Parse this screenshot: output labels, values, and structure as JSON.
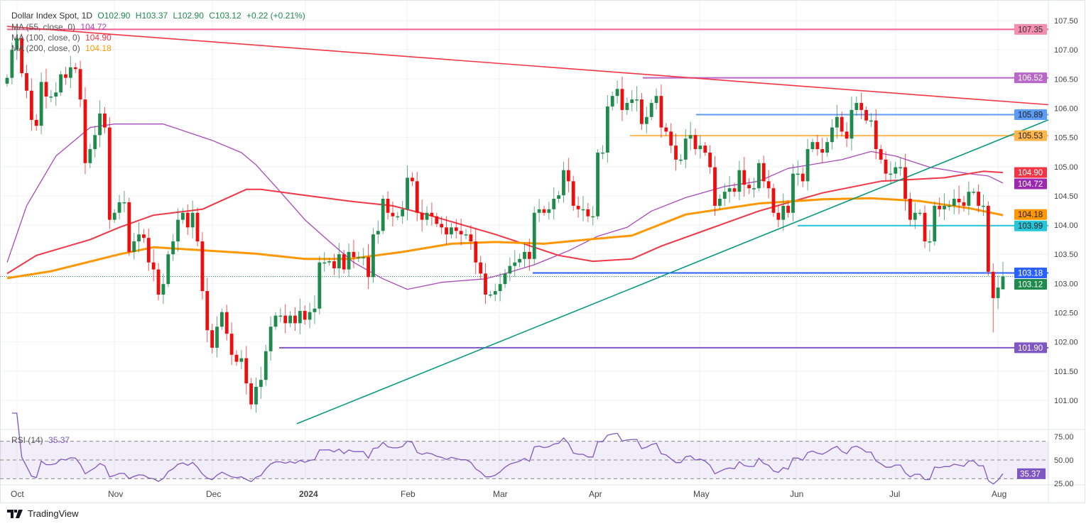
{
  "header": {
    "symbol": "Dollar Index Spot, 1D",
    "open": "O102.90",
    "high": "H103.37",
    "low": "L102.90",
    "close": "C103.12",
    "change": "+0.22 (+0.21%)"
  },
  "indicators": {
    "ma55": {
      "label": "MA (55, close, 0)",
      "value": "104.72",
      "color": "#ab47bc"
    },
    "ma100": {
      "label": "MA (100, close, 0)",
      "value": "104.90",
      "color": "#f23645"
    },
    "ma200": {
      "label": "MA (200, close, 0)",
      "value": "104.18",
      "color": "#ff9800"
    },
    "rsi": {
      "label": "RSI (14)",
      "value": "35.37",
      "color": "#7e57c2"
    }
  },
  "branding": {
    "name": "TradingView"
  },
  "chart_data": {
    "type": "candlestick",
    "title": "Dollar Index Spot, 1D",
    "ylim": [
      100.6,
      107.7
    ],
    "y_ticks": [
      "107.50",
      "107.00",
      "106.50",
      "106.00",
      "105.50",
      "105.00",
      "104.50",
      "104.00",
      "103.50",
      "103.00",
      "102.50",
      "102.00",
      "101.50",
      "101.00"
    ],
    "x_ticks": [
      "Oct",
      "Nov",
      "Dec",
      "2024",
      "Feb",
      "Mar",
      "Apr",
      "May",
      "Jun",
      "Jul",
      "Aug"
    ],
    "grid": true,
    "last_bar": {
      "open": 102.9,
      "high": 103.37,
      "low": 102.9,
      "close": 103.12
    },
    "closes": [
      106.52,
      107.0,
      107.2,
      106.6,
      106.3,
      105.8,
      105.7,
      106.45,
      106.2,
      106.2,
      106.27,
      106.58,
      106.52,
      106.7,
      106.67,
      106.15,
      105.06,
      105.3,
      105.54,
      105.91,
      105.67,
      104.09,
      104.21,
      104.39,
      104.39,
      103.54,
      103.72,
      103.84,
      103.78,
      103.36,
      103.24,
      102.81,
      102.99,
      103.5,
      103.72,
      104.09,
      104.21,
      103.96,
      104.21,
      103.72,
      102.87,
      102.2,
      101.9,
      102.26,
      102.51,
      102.14,
      101.78,
      101.66,
      101.72,
      101.29,
      100.93,
      101.23,
      101.35,
      101.84,
      102.26,
      102.45,
      102.45,
      102.32,
      102.45,
      102.32,
      102.53,
      102.38,
      102.51,
      102.57,
      103.36,
      103.36,
      103.38,
      103.26,
      103.5,
      103.24,
      103.54,
      103.45,
      103.45,
      103.45,
      103.11,
      103.84,
      103.9,
      104.45,
      104.21,
      104.15,
      104.15,
      104.27,
      104.81,
      104.75,
      104.21,
      104.09,
      104.21,
      104.15,
      104.02,
      103.96,
      103.84,
      103.96,
      103.9,
      103.84,
      103.84,
      103.72,
      103.36,
      103.17,
      102.81,
      102.81,
      102.87,
      102.99,
      103.17,
      103.3,
      103.36,
      103.42,
      103.54,
      103.42,
      104.21,
      104.27,
      104.21,
      104.27,
      104.45,
      104.51,
      104.94,
      104.75,
      104.33,
      104.27,
      104.27,
      104.15,
      104.15,
      105.24,
      105.24,
      106.03,
      106.21,
      106.33,
      105.97,
      106.09,
      106.15,
      106.15,
      105.73,
      105.85,
      106.09,
      106.21,
      105.67,
      105.6,
      105.36,
      105.12,
      105.12,
      105.48,
      105.54,
      105.3,
      105.36,
      105.24,
      104.99,
      104.33,
      104.45,
      104.57,
      104.63,
      104.57,
      104.94,
      104.69,
      104.63,
      104.63,
      105.06,
      104.75,
      104.63,
      104.21,
      104.09,
      104.33,
      104.21,
      104.88,
      104.88,
      104.75,
      105.3,
      105.42,
      105.3,
      105.24,
      105.42,
      105.67,
      105.85,
      105.6,
      105.48,
      105.97,
      106.09,
      105.97,
      105.79,
      105.79,
      105.3,
      105.12,
      104.88,
      104.88,
      104.99,
      104.99,
      104.45,
      104.09,
      104.21,
      104.21,
      103.72,
      103.72,
      104.33,
      104.27,
      104.33,
      104.33,
      104.45,
      104.39,
      104.33,
      104.57,
      104.57,
      104.33,
      104.33,
      103.2,
      102.75,
      102.93,
      103.12
    ],
    "moving_averages": [
      {
        "name": "MA (55, close, 0)",
        "color": "#ab47bc",
        "points": [
          [
            0,
            103.36
          ],
          [
            4,
            104.33
          ],
          [
            10,
            105.18
          ],
          [
            17,
            105.67
          ],
          [
            22,
            105.73
          ],
          [
            32,
            105.73
          ],
          [
            42,
            105.45
          ],
          [
            48,
            105.24
          ],
          [
            51,
            105.03
          ],
          [
            55,
            104.66
          ],
          [
            61,
            104.09
          ],
          [
            66,
            103.72
          ],
          [
            71,
            103.36
          ],
          [
            77,
            103.08
          ],
          [
            82,
            102.9
          ],
          [
            89,
            103.02
          ],
          [
            98,
            103.08
          ],
          [
            102,
            103.17
          ],
          [
            108,
            103.32
          ],
          [
            115,
            103.56
          ],
          [
            121,
            103.81
          ],
          [
            127,
            103.96
          ],
          [
            132,
            104.24
          ],
          [
            139,
            104.47
          ],
          [
            147,
            104.66
          ],
          [
            154,
            104.75
          ],
          [
            160,
            104.97
          ],
          [
            171,
            105.12
          ],
          [
            177,
            105.26
          ],
          [
            182,
            105.18
          ],
          [
            189,
            104.99
          ],
          [
            197,
            104.88
          ],
          [
            201,
            104.84
          ],
          [
            204,
            104.72
          ]
        ]
      },
      {
        "name": "MA (100, close, 0)",
        "color": "#f23645",
        "points": [
          [
            0,
            103.17
          ],
          [
            6,
            103.48
          ],
          [
            17,
            103.75
          ],
          [
            23,
            103.96
          ],
          [
            30,
            104.17
          ],
          [
            40,
            104.27
          ],
          [
            49,
            104.61
          ],
          [
            52,
            104.61
          ],
          [
            61,
            104.51
          ],
          [
            70,
            104.41
          ],
          [
            79,
            104.33
          ],
          [
            86,
            104.18
          ],
          [
            100,
            103.84
          ],
          [
            113,
            103.48
          ],
          [
            120,
            103.38
          ],
          [
            128,
            103.42
          ],
          [
            134,
            103.64
          ],
          [
            144,
            103.94
          ],
          [
            154,
            104.24
          ],
          [
            167,
            104.55
          ],
          [
            179,
            104.75
          ],
          [
            192,
            104.81
          ],
          [
            200,
            104.92
          ],
          [
            204,
            104.9
          ]
        ]
      },
      {
        "name": "MA (200, close, 0)",
        "color": "#ff9800",
        "points": [
          [
            0,
            103.09
          ],
          [
            9,
            103.21
          ],
          [
            23,
            103.5
          ],
          [
            30,
            103.62
          ],
          [
            51,
            103.51
          ],
          [
            61,
            103.42
          ],
          [
            70,
            103.42
          ],
          [
            81,
            103.54
          ],
          [
            91,
            103.68
          ],
          [
            100,
            103.71
          ],
          [
            110,
            103.68
          ],
          [
            120,
            103.76
          ],
          [
            128,
            103.82
          ],
          [
            139,
            104.18
          ],
          [
            154,
            104.37
          ],
          [
            167,
            104.44
          ],
          [
            177,
            104.46
          ],
          [
            187,
            104.41
          ],
          [
            197,
            104.29
          ],
          [
            204,
            104.17
          ]
        ]
      }
    ],
    "horizontal_levels": [
      {
        "value": "107.35",
        "color": "#f06292"
      },
      {
        "value": "106.52",
        "color": "#ba68c8"
      },
      {
        "value": "105.89",
        "color": "#5b9cf6"
      },
      {
        "value": "105.53",
        "color": "#ffb74d"
      },
      {
        "value": "103.99",
        "color": "#26c6da"
      },
      {
        "value": "103.18",
        "color": "#2962ff"
      },
      {
        "value": "101.90",
        "color": "#7e57c2"
      }
    ],
    "price_labels": [
      {
        "value": "107.35",
        "bg": "#f48fb1",
        "fg": "#333"
      },
      {
        "value": "106.52",
        "bg": "#ba68c8",
        "fg": "#fff"
      },
      {
        "value": "105.89",
        "bg": "#5b9cf6",
        "fg": "#222"
      },
      {
        "value": "105.53",
        "bg": "#ffb74d",
        "fg": "#222"
      },
      {
        "value": "104.90",
        "bg": "#f23645",
        "fg": "#fff"
      },
      {
        "value": "104.72",
        "bg": "#9c27b0",
        "fg": "#fff"
      },
      {
        "value": "104.18",
        "bg": "#ff9800",
        "fg": "#222"
      },
      {
        "value": "103.99",
        "bg": "#26c6da",
        "fg": "#222"
      },
      {
        "value": "103.18",
        "bg": "#2962ff",
        "fg": "#fff"
      },
      {
        "value": "103.12",
        "bg": "#1e8a4c",
        "fg": "#fff"
      },
      {
        "value": "101.90",
        "bg": "#7e57c2",
        "fg": "#fff"
      }
    ],
    "trendlines": [
      {
        "name": "descending-resistance",
        "color": "#f23645",
        "from": 107.4,
        "to": 106.06
      },
      {
        "name": "ascending-support",
        "color": "#089981",
        "from": 100.6,
        "to": 105.8
      }
    ],
    "rsi": {
      "period": 14,
      "levels": [
        70,
        50,
        30
      ],
      "ticks": [
        "75.00",
        "50.00",
        "25.00"
      ],
      "last": "35.37"
    }
  }
}
